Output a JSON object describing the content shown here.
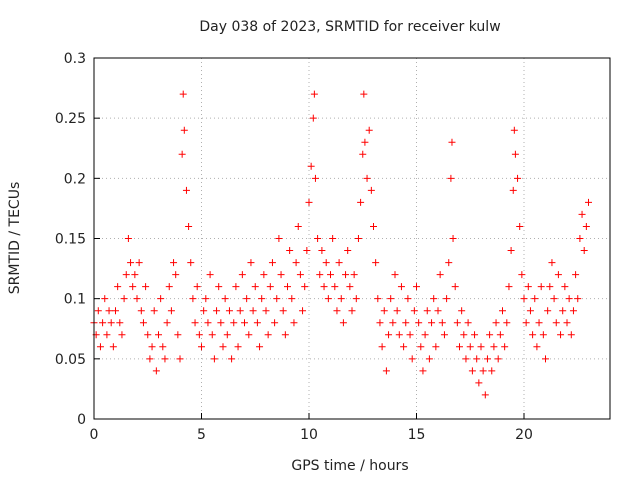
{
  "chart_data": {
    "type": "scatter",
    "title": "Day 038 of 2023, SRMTID for receiver kulw",
    "xlabel": "GPS time / hours",
    "ylabel": "SRMTID / TECUs",
    "xlim": [
      0,
      24
    ],
    "ylim": [
      0,
      0.3
    ],
    "xticks": [
      0,
      5,
      10,
      15,
      20
    ],
    "xtick_labels": [
      "0",
      "5",
      "10",
      "15",
      "20"
    ],
    "yticks": [
      0,
      0.05,
      0.1,
      0.15,
      0.2,
      0.25,
      0.3
    ],
    "ytick_labels": [
      "0",
      "0.05",
      "0.1",
      "0.15",
      "0.2",
      "0.25",
      "0.3"
    ],
    "grid": true,
    "marker": "plus",
    "color": "#ff0000",
    "series": [
      {
        "name": "SRMTID",
        "points": [
          [
            0.0,
            0.08
          ],
          [
            0.1,
            0.07
          ],
          [
            0.2,
            0.09
          ],
          [
            0.3,
            0.06
          ],
          [
            0.4,
            0.08
          ],
          [
            0.5,
            0.1
          ],
          [
            0.6,
            0.07
          ],
          [
            0.7,
            0.09
          ],
          [
            0.8,
            0.08
          ],
          [
            0.9,
            0.06
          ],
          [
            1.0,
            0.09
          ],
          [
            1.1,
            0.11
          ],
          [
            1.2,
            0.08
          ],
          [
            1.3,
            0.07
          ],
          [
            1.4,
            0.1
          ],
          [
            1.5,
            0.12
          ],
          [
            1.6,
            0.15
          ],
          [
            1.7,
            0.13
          ],
          [
            1.8,
            0.11
          ],
          [
            1.9,
            0.12
          ],
          [
            2.0,
            0.1
          ],
          [
            2.1,
            0.13
          ],
          [
            2.2,
            0.09
          ],
          [
            2.3,
            0.08
          ],
          [
            2.4,
            0.11
          ],
          [
            2.5,
            0.07
          ],
          [
            2.6,
            0.05
          ],
          [
            2.7,
            0.06
          ],
          [
            2.8,
            0.09
          ],
          [
            2.9,
            0.04
          ],
          [
            3.0,
            0.07
          ],
          [
            3.1,
            0.1
          ],
          [
            3.2,
            0.06
          ],
          [
            3.3,
            0.05
          ],
          [
            3.4,
            0.08
          ],
          [
            3.5,
            0.11
          ],
          [
            3.6,
            0.09
          ],
          [
            3.7,
            0.13
          ],
          [
            3.8,
            0.12
          ],
          [
            3.9,
            0.07
          ],
          [
            4.0,
            0.05
          ],
          [
            4.1,
            0.22
          ],
          [
            4.15,
            0.27
          ],
          [
            4.2,
            0.24
          ],
          [
            4.3,
            0.19
          ],
          [
            4.4,
            0.16
          ],
          [
            4.5,
            0.13
          ],
          [
            4.6,
            0.1
          ],
          [
            4.7,
            0.08
          ],
          [
            4.8,
            0.11
          ],
          [
            4.9,
            0.07
          ],
          [
            5.0,
            0.06
          ],
          [
            5.1,
            0.09
          ],
          [
            5.2,
            0.1
          ],
          [
            5.3,
            0.08
          ],
          [
            5.4,
            0.12
          ],
          [
            5.5,
            0.07
          ],
          [
            5.6,
            0.05
          ],
          [
            5.7,
            0.09
          ],
          [
            5.8,
            0.11
          ],
          [
            5.9,
            0.08
          ],
          [
            6.0,
            0.06
          ],
          [
            6.1,
            0.1
          ],
          [
            6.2,
            0.07
          ],
          [
            6.3,
            0.09
          ],
          [
            6.4,
            0.05
          ],
          [
            6.5,
            0.08
          ],
          [
            6.6,
            0.11
          ],
          [
            6.7,
            0.06
          ],
          [
            6.8,
            0.09
          ],
          [
            6.9,
            0.12
          ],
          [
            7.0,
            0.08
          ],
          [
            7.1,
            0.1
          ],
          [
            7.2,
            0.07
          ],
          [
            7.3,
            0.13
          ],
          [
            7.4,
            0.09
          ],
          [
            7.5,
            0.11
          ],
          [
            7.6,
            0.08
          ],
          [
            7.7,
            0.06
          ],
          [
            7.8,
            0.1
          ],
          [
            7.9,
            0.12
          ],
          [
            8.0,
            0.09
          ],
          [
            8.1,
            0.07
          ],
          [
            8.2,
            0.11
          ],
          [
            8.3,
            0.13
          ],
          [
            8.4,
            0.08
          ],
          [
            8.5,
            0.1
          ],
          [
            8.6,
            0.15
          ],
          [
            8.7,
            0.12
          ],
          [
            8.8,
            0.09
          ],
          [
            8.9,
            0.07
          ],
          [
            9.0,
            0.11
          ],
          [
            9.1,
            0.14
          ],
          [
            9.2,
            0.1
          ],
          [
            9.3,
            0.08
          ],
          [
            9.4,
            0.13
          ],
          [
            9.5,
            0.16
          ],
          [
            9.6,
            0.12
          ],
          [
            9.7,
            0.09
          ],
          [
            9.8,
            0.11
          ],
          [
            9.9,
            0.14
          ],
          [
            10.0,
            0.18
          ],
          [
            10.1,
            0.21
          ],
          [
            10.2,
            0.25
          ],
          [
            10.25,
            0.27
          ],
          [
            10.3,
            0.2
          ],
          [
            10.4,
            0.15
          ],
          [
            10.5,
            0.12
          ],
          [
            10.6,
            0.14
          ],
          [
            10.7,
            0.11
          ],
          [
            10.8,
            0.13
          ],
          [
            10.9,
            0.1
          ],
          [
            11.0,
            0.12
          ],
          [
            11.1,
            0.15
          ],
          [
            11.2,
            0.11
          ],
          [
            11.3,
            0.09
          ],
          [
            11.4,
            0.13
          ],
          [
            11.5,
            0.1
          ],
          [
            11.6,
            0.08
          ],
          [
            11.7,
            0.12
          ],
          [
            11.8,
            0.14
          ],
          [
            11.9,
            0.11
          ],
          [
            12.0,
            0.09
          ],
          [
            12.1,
            0.12
          ],
          [
            12.2,
            0.1
          ],
          [
            12.3,
            0.15
          ],
          [
            12.4,
            0.18
          ],
          [
            12.5,
            0.22
          ],
          [
            12.55,
            0.27
          ],
          [
            12.6,
            0.23
          ],
          [
            12.7,
            0.2
          ],
          [
            12.8,
            0.24
          ],
          [
            12.9,
            0.19
          ],
          [
            13.0,
            0.16
          ],
          [
            13.1,
            0.13
          ],
          [
            13.2,
            0.1
          ],
          [
            13.3,
            0.08
          ],
          [
            13.4,
            0.06
          ],
          [
            13.5,
            0.09
          ],
          [
            13.6,
            0.04
          ],
          [
            13.7,
            0.07
          ],
          [
            13.8,
            0.1
          ],
          [
            13.9,
            0.08
          ],
          [
            14.0,
            0.12
          ],
          [
            14.1,
            0.09
          ],
          [
            14.2,
            0.07
          ],
          [
            14.3,
            0.11
          ],
          [
            14.4,
            0.06
          ],
          [
            14.5,
            0.08
          ],
          [
            14.6,
            0.1
          ],
          [
            14.7,
            0.07
          ],
          [
            14.8,
            0.05
          ],
          [
            14.9,
            0.09
          ],
          [
            15.0,
            0.11
          ],
          [
            15.1,
            0.08
          ],
          [
            15.2,
            0.06
          ],
          [
            15.3,
            0.04
          ],
          [
            15.4,
            0.07
          ],
          [
            15.5,
            0.09
          ],
          [
            15.6,
            0.05
          ],
          [
            15.7,
            0.08
          ],
          [
            15.8,
            0.1
          ],
          [
            15.9,
            0.06
          ],
          [
            16.0,
            0.09
          ],
          [
            16.1,
            0.12
          ],
          [
            16.2,
            0.08
          ],
          [
            16.3,
            0.07
          ],
          [
            16.4,
            0.1
          ],
          [
            16.5,
            0.13
          ],
          [
            16.6,
            0.2
          ],
          [
            16.65,
            0.23
          ],
          [
            16.7,
            0.15
          ],
          [
            16.8,
            0.11
          ],
          [
            16.9,
            0.08
          ],
          [
            17.0,
            0.06
          ],
          [
            17.1,
            0.09
          ],
          [
            17.2,
            0.07
          ],
          [
            17.3,
            0.05
          ],
          [
            17.4,
            0.08
          ],
          [
            17.5,
            0.06
          ],
          [
            17.6,
            0.04
          ],
          [
            17.7,
            0.07
          ],
          [
            17.8,
            0.05
          ],
          [
            17.9,
            0.03
          ],
          [
            18.0,
            0.06
          ],
          [
            18.1,
            0.04
          ],
          [
            18.2,
            0.02
          ],
          [
            18.3,
            0.05
          ],
          [
            18.4,
            0.07
          ],
          [
            18.5,
            0.04
          ],
          [
            18.6,
            0.06
          ],
          [
            18.7,
            0.08
          ],
          [
            18.8,
            0.05
          ],
          [
            18.9,
            0.07
          ],
          [
            19.0,
            0.09
          ],
          [
            19.1,
            0.06
          ],
          [
            19.2,
            0.08
          ],
          [
            19.3,
            0.11
          ],
          [
            19.4,
            0.14
          ],
          [
            19.5,
            0.19
          ],
          [
            19.55,
            0.24
          ],
          [
            19.6,
            0.22
          ],
          [
            19.7,
            0.2
          ],
          [
            19.8,
            0.16
          ],
          [
            19.9,
            0.12
          ],
          [
            20.0,
            0.1
          ],
          [
            20.1,
            0.08
          ],
          [
            20.2,
            0.11
          ],
          [
            20.3,
            0.09
          ],
          [
            20.4,
            0.07
          ],
          [
            20.5,
            0.1
          ],
          [
            20.6,
            0.06
          ],
          [
            20.7,
            0.08
          ],
          [
            20.8,
            0.11
          ],
          [
            20.9,
            0.07
          ],
          [
            21.0,
            0.05
          ],
          [
            21.1,
            0.09
          ],
          [
            21.2,
            0.11
          ],
          [
            21.3,
            0.13
          ],
          [
            21.4,
            0.1
          ],
          [
            21.5,
            0.08
          ],
          [
            21.6,
            0.12
          ],
          [
            21.7,
            0.07
          ],
          [
            21.8,
            0.09
          ],
          [
            21.9,
            0.11
          ],
          [
            22.0,
            0.08
          ],
          [
            22.1,
            0.1
          ],
          [
            22.2,
            0.07
          ],
          [
            22.3,
            0.09
          ],
          [
            22.4,
            0.12
          ],
          [
            22.5,
            0.1
          ],
          [
            22.6,
            0.15
          ],
          [
            22.7,
            0.17
          ],
          [
            22.8,
            0.14
          ],
          [
            22.9,
            0.16
          ],
          [
            23.0,
            0.18
          ]
        ]
      }
    ]
  }
}
